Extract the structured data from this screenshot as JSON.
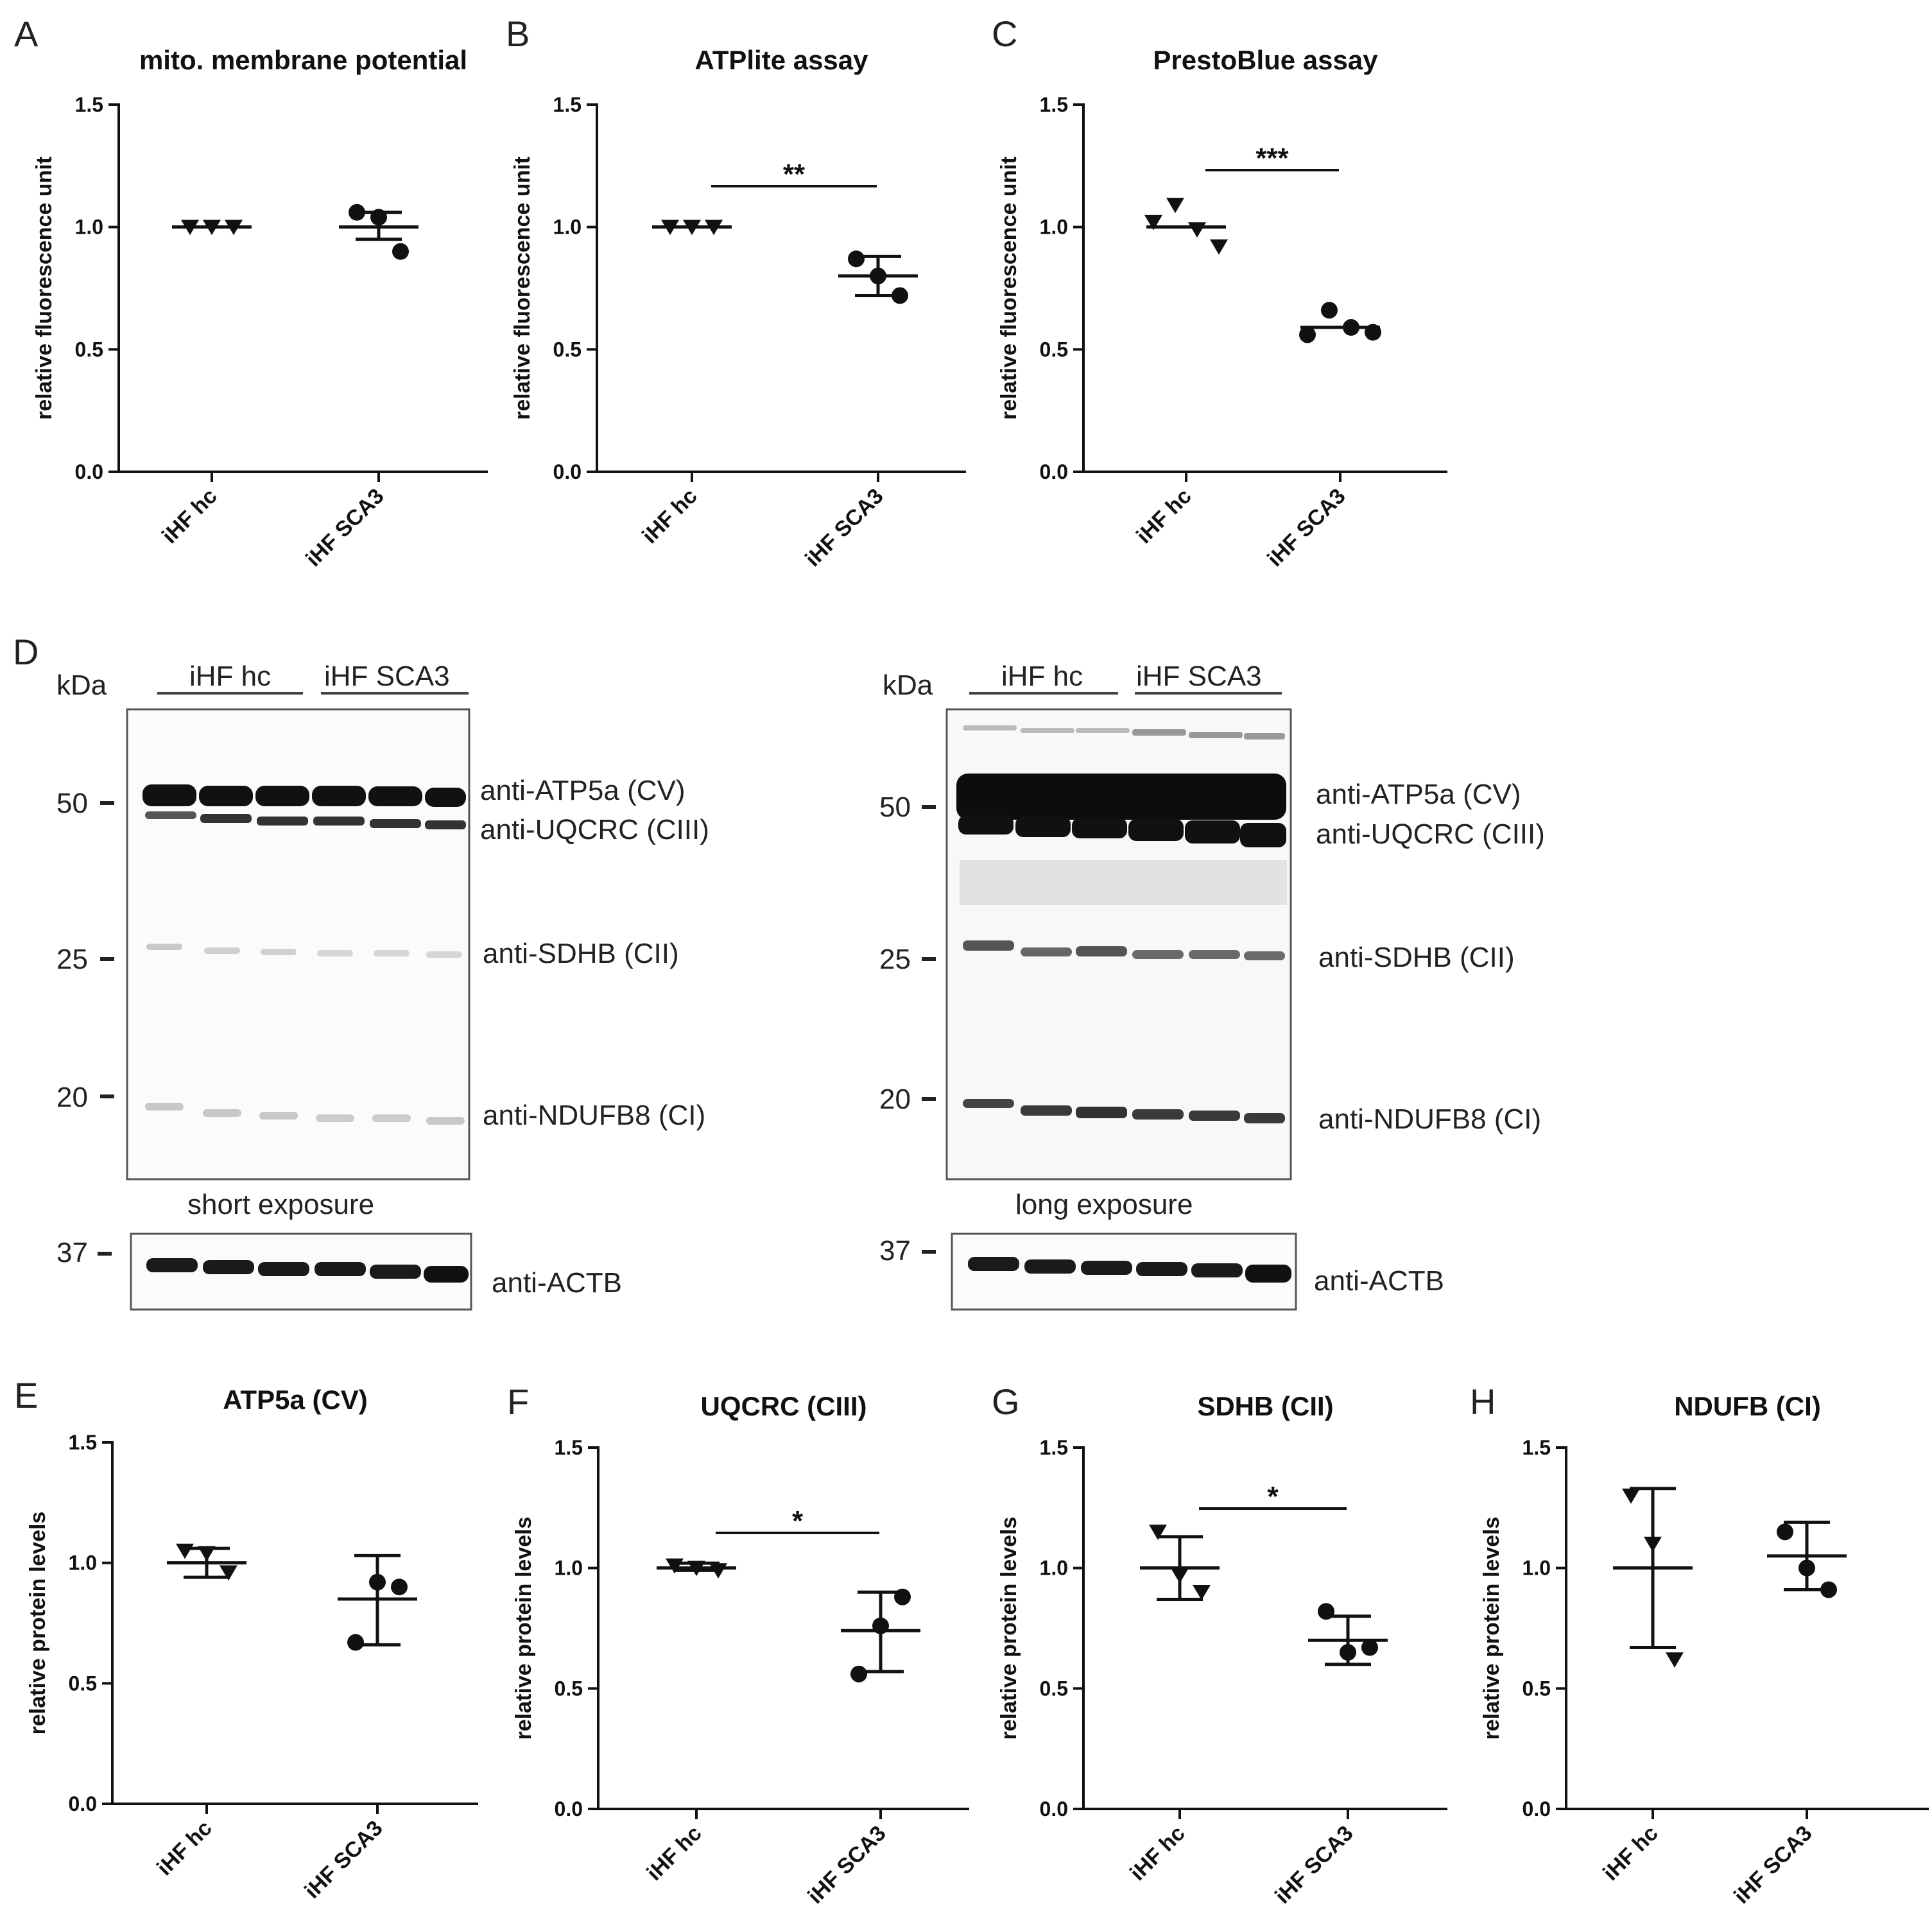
{
  "chart_data": [
    {
      "panel": "A",
      "type": "scatter",
      "title": "mito. membrane potential",
      "ylabel": "relative fluorescence unit",
      "categories": [
        "iHF hc",
        "iHF SCA3"
      ],
      "ylim": [
        0,
        1.5
      ],
      "yticks": [
        "0.0",
        "0.5",
        "1.0",
        "1.5"
      ],
      "groups": [
        {
          "category": "iHF hc",
          "marker": "triangle",
          "points": [
            1.0,
            1.0,
            1.0
          ],
          "mean": 1.0,
          "err_low": 1.0,
          "err_high": 1.0
        },
        {
          "category": "iHF SCA3",
          "marker": "circle",
          "points": [
            1.06,
            1.04,
            0.9
          ],
          "mean": 1.0,
          "err_low": 0.95,
          "err_high": 1.06
        }
      ],
      "significance": null
    },
    {
      "panel": "B",
      "type": "scatter",
      "title": "ATPlite assay",
      "ylabel": "relative fluorescence unit",
      "categories": [
        "iHF hc",
        "iHF SCA3"
      ],
      "ylim": [
        0,
        1.5
      ],
      "yticks": [
        "0.0",
        "0.5",
        "1.0",
        "1.5"
      ],
      "groups": [
        {
          "category": "iHF hc",
          "marker": "triangle",
          "points": [
            1.0,
            1.0,
            1.0
          ],
          "mean": 1.0,
          "err_low": 1.0,
          "err_high": 1.0
        },
        {
          "category": "iHF SCA3",
          "marker": "circle",
          "points": [
            0.87,
            0.8,
            0.72
          ],
          "mean": 0.8,
          "err_low": 0.72,
          "err_high": 0.88
        }
      ],
      "significance": "**"
    },
    {
      "panel": "C",
      "type": "scatter",
      "title": "PrestoBlue assay",
      "ylabel": "relative fluorescence unit",
      "categories": [
        "iHF hc",
        "iHF SCA3"
      ],
      "ylim": [
        0,
        1.5
      ],
      "yticks": [
        "0.0",
        "0.5",
        "1.0",
        "1.5"
      ],
      "groups": [
        {
          "category": "iHF hc",
          "marker": "triangle",
          "points": [
            1.02,
            1.09,
            0.99,
            0.92
          ],
          "mean": 1.0,
          "err_low": 1.0,
          "err_high": 1.0
        },
        {
          "category": "iHF SCA3",
          "marker": "circle",
          "points": [
            0.56,
            0.66,
            0.59,
            0.57
          ],
          "mean": 0.59,
          "err_low": 0.59,
          "err_high": 0.59
        }
      ],
      "significance": "***"
    },
    {
      "panel": "E",
      "type": "scatter",
      "title": "ATP5a (CV)",
      "ylabel": "relative protein levels",
      "categories": [
        "iHF hc",
        "iHF SCA3"
      ],
      "ylim": [
        0,
        1.5
      ],
      "yticks": [
        "0.0",
        "0.5",
        "1.0",
        "1.5"
      ],
      "groups": [
        {
          "category": "iHF hc",
          "marker": "triangle",
          "points": [
            1.05,
            1.04,
            0.96
          ],
          "mean": 1.0,
          "err_low": 0.94,
          "err_high": 1.06
        },
        {
          "category": "iHF SCA3",
          "marker": "circle",
          "points": [
            0.67,
            0.92,
            0.9
          ],
          "mean": 0.85,
          "err_low": 0.66,
          "err_high": 1.03
        }
      ],
      "significance": null
    },
    {
      "panel": "F",
      "type": "scatter",
      "title": "UQCRC (CIII)",
      "ylabel": "relative protein levels",
      "categories": [
        "iHF hc",
        "iHF SCA3"
      ],
      "ylim": [
        0,
        1.5
      ],
      "yticks": [
        "0.0",
        "0.5",
        "1.0",
        "1.5"
      ],
      "groups": [
        {
          "category": "iHF hc",
          "marker": "triangle",
          "points": [
            1.01,
            1.0,
            0.99
          ],
          "mean": 1.0,
          "err_low": 0.99,
          "err_high": 1.02
        },
        {
          "category": "iHF SCA3",
          "marker": "circle",
          "points": [
            0.56,
            0.76,
            0.88
          ],
          "mean": 0.74,
          "err_low": 0.57,
          "err_high": 0.9
        }
      ],
      "significance": "*"
    },
    {
      "panel": "G",
      "type": "scatter",
      "title": "SDHB (CII)",
      "ylabel": "relative protein levels",
      "categories": [
        "iHF hc",
        "iHF SCA3"
      ],
      "ylim": [
        0,
        1.5
      ],
      "yticks": [
        "0.0",
        "0.5",
        "1.0",
        "1.5"
      ],
      "groups": [
        {
          "category": "iHF hc",
          "marker": "triangle",
          "points": [
            1.15,
            0.97,
            0.9
          ],
          "mean": 1.0,
          "err_low": 0.87,
          "err_high": 1.13
        },
        {
          "category": "iHF SCA3",
          "marker": "circle",
          "points": [
            0.82,
            0.65,
            0.67
          ],
          "mean": 0.7,
          "err_low": 0.6,
          "err_high": 0.8
        }
      ],
      "significance": "*"
    },
    {
      "panel": "H",
      "type": "scatter",
      "title": "NDUFB (CI)",
      "ylabel": "relative protein levels",
      "categories": [
        "iHF hc",
        "iHF SCA3"
      ],
      "ylim": [
        0,
        1.5
      ],
      "yticks": [
        "0.0",
        "0.5",
        "1.0",
        "1.5"
      ],
      "groups": [
        {
          "category": "iHF hc",
          "marker": "triangle",
          "points": [
            1.3,
            1.1,
            0.62
          ],
          "mean": 1.0,
          "err_low": 0.67,
          "err_high": 1.33
        },
        {
          "category": "iHF SCA3",
          "marker": "circle",
          "points": [
            1.15,
            1.0,
            0.91
          ],
          "mean": 1.05,
          "err_low": 0.91,
          "err_high": 1.19
        }
      ],
      "significance": null
    }
  ],
  "blot": {
    "panel_letter": "D",
    "kda_label": "kDa",
    "group_labels": [
      "iHF hc",
      "iHF SCA3"
    ],
    "markers": [
      "50",
      "25",
      "20",
      "37"
    ],
    "band_labels": [
      "anti-ATP5a (CV)",
      "anti-UQCRC (CIII)",
      "anti-SDHB (CII)",
      "anti-NDUFB8 (CI)"
    ],
    "loading_label": "anti-ACTB",
    "exposures": [
      "short exposure",
      "long exposure"
    ]
  },
  "colors": {
    "ink": "#111111",
    "band": "#1a1a1a"
  }
}
